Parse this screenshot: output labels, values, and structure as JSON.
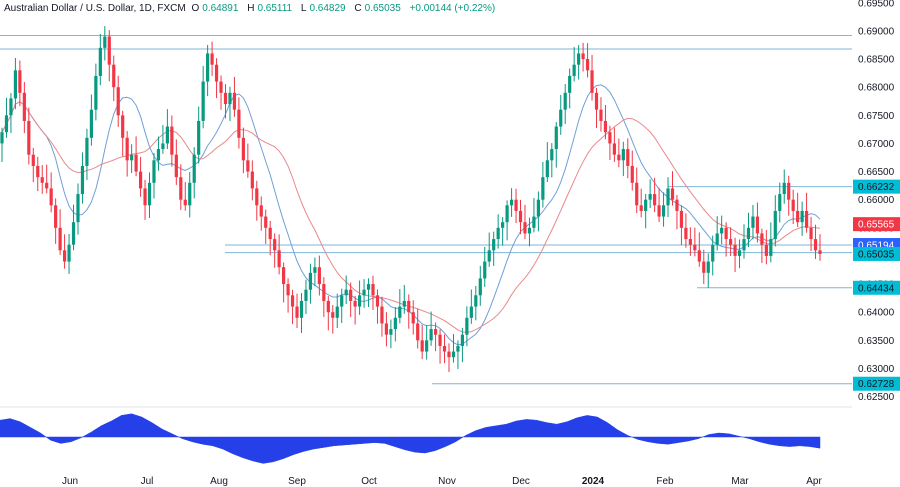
{
  "header": {
    "symbol": "Australian Dollar / U.S. Dollar, 1D, FXCM",
    "open_label": "O",
    "open": "0.64891",
    "high_label": "H",
    "high": "0.65111",
    "low_label": "L",
    "low": "0.64829",
    "close_label": "C",
    "close": "0.65035",
    "change": "+0.00144 (+0.22%)"
  },
  "chart_data": {
    "type": "candlestick",
    "y_axis": {
      "range": [
        0.6235,
        0.6955
      ],
      "ticks": [
        "0.69500",
        "0.69000",
        "0.68500",
        "0.68000",
        "0.67500",
        "0.67000",
        "0.66500",
        "0.66000",
        "0.65500",
        "0.65000",
        "0.64500",
        "0.64000",
        "0.63500",
        "0.63000",
        "0.62500"
      ]
    },
    "x_axis": {
      "labels": [
        "Jun",
        "Jul",
        "Aug",
        "Sep",
        "Oct",
        "Nov",
        "Dec",
        "2024",
        "Feb",
        "Mar",
        "Apr"
      ],
      "bold": [
        "2024"
      ]
    },
    "price_labels": [
      {
        "value": "0.66232",
        "color": "#00bcd4"
      },
      {
        "value": "0.65565",
        "color": "#f23645"
      },
      {
        "value": "0.65194",
        "color": "#2962ff"
      },
      {
        "value": "0.65035",
        "color": "#00bcd4"
      },
      {
        "value": "0.64434",
        "color": "#00bcd4"
      },
      {
        "value": "0.62728",
        "color": "#00bcd4"
      }
    ],
    "horizontal_levels": [
      0.6868,
      0.6892,
      0.66232,
      0.65194,
      0.6506,
      0.64434,
      0.62728
    ],
    "series": [
      {
        "name": "close",
        "values": [
          0.672,
          0.675,
          0.678,
          0.683,
          0.679,
          0.674,
          0.668,
          0.666,
          0.664,
          0.663,
          0.662,
          0.659,
          0.655,
          0.651,
          0.649,
          0.652,
          0.656,
          0.661,
          0.666,
          0.671,
          0.676,
          0.682,
          0.687,
          0.689,
          0.684,
          0.68,
          0.675,
          0.671,
          0.667,
          0.668,
          0.665,
          0.662,
          0.659,
          0.663,
          0.667,
          0.669,
          0.67,
          0.673,
          0.668,
          0.664,
          0.66,
          0.659,
          0.663,
          0.668,
          0.674,
          0.681,
          0.686,
          0.684,
          0.681,
          0.679,
          0.677,
          0.679,
          0.676,
          0.671,
          0.667,
          0.665,
          0.662,
          0.659,
          0.657,
          0.655,
          0.653,
          0.651,
          0.648,
          0.645,
          0.643,
          0.641,
          0.639,
          0.642,
          0.644,
          0.647,
          0.648,
          0.645,
          0.642,
          0.64,
          0.639,
          0.641,
          0.643,
          0.644,
          0.642,
          0.641,
          0.643,
          0.644,
          0.645,
          0.643,
          0.641,
          0.638,
          0.636,
          0.637,
          0.639,
          0.641,
          0.642,
          0.64,
          0.638,
          0.635,
          0.633,
          0.635,
          0.637,
          0.636,
          0.634,
          0.633,
          0.632,
          0.633,
          0.634,
          0.636,
          0.639,
          0.641,
          0.643,
          0.646,
          0.649,
          0.651,
          0.653,
          0.655,
          0.656,
          0.659,
          0.66,
          0.658,
          0.656,
          0.654,
          0.655,
          0.657,
          0.66,
          0.664,
          0.667,
          0.669,
          0.673,
          0.676,
          0.679,
          0.682,
          0.684,
          0.686,
          0.685,
          0.683,
          0.679,
          0.676,
          0.674,
          0.672,
          0.67,
          0.668,
          0.667,
          0.669,
          0.666,
          0.663,
          0.659,
          0.658,
          0.66,
          0.661,
          0.659,
          0.657,
          0.659,
          0.662,
          0.66,
          0.658,
          0.655,
          0.653,
          0.652,
          0.651,
          0.649,
          0.647,
          0.649,
          0.652,
          0.654,
          0.655,
          0.653,
          0.652,
          0.65,
          0.651,
          0.653,
          0.655,
          0.657,
          0.654,
          0.652,
          0.65,
          0.653,
          0.658,
          0.661,
          0.663,
          0.66,
          0.658,
          0.656,
          0.658,
          0.655,
          0.653,
          0.651,
          0.65035
        ]
      },
      {
        "name": "histogram",
        "values": [
          0.0021,
          0.0023,
          0.0019,
          0.0012,
          0.0005,
          -0.0004,
          -0.0008,
          -0.0006,
          -0.0001,
          0.0006,
          0.0014,
          0.002,
          0.0027,
          0.0029,
          0.0025,
          0.0018,
          0.001,
          0.0004,
          -0.0002,
          -0.0006,
          -0.0009,
          -0.0011,
          -0.0015,
          -0.0021,
          -0.0026,
          -0.003,
          -0.0033,
          -0.0031,
          -0.0027,
          -0.0022,
          -0.0018,
          -0.0015,
          -0.0013,
          -0.0011,
          -0.001,
          -0.0009,
          -0.0008,
          -0.0007,
          -0.0008,
          -0.0012,
          -0.0016,
          -0.0019,
          -0.002,
          -0.0017,
          -0.0012,
          -0.0006,
          0.0002,
          0.0008,
          0.0012,
          0.0014,
          0.0016,
          0.002,
          0.0022,
          0.0021,
          0.0018,
          0.0016,
          0.0019,
          0.0024,
          0.0027,
          0.0025,
          0.0018,
          0.0009,
          0.0002,
          -0.0003,
          -0.0006,
          -0.0008,
          -0.0009,
          -0.0007,
          -0.0005,
          -0.0002,
          0.0003,
          0.0005,
          0.0004,
          0.0001,
          -0.0002,
          -0.0006,
          -0.0009,
          -0.0011,
          -0.0012,
          -0.0011,
          -0.0012,
          -0.0014
        ]
      }
    ]
  }
}
